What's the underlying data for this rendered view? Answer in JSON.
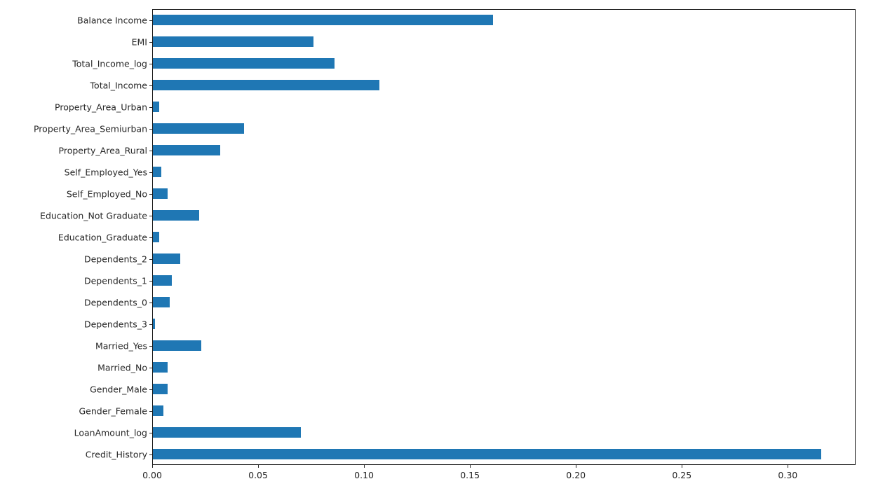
{
  "chart_data": {
    "type": "bar",
    "orientation": "horizontal",
    "title": "",
    "xlabel": "",
    "ylabel": "",
    "grid": false,
    "legend": null,
    "bar_color": "#1f77b4",
    "spine_color": "#1a1a1a",
    "text_color": "#262626",
    "xlim": [
      0,
      0.332
    ],
    "xticks": [
      0.0,
      0.05,
      0.1,
      0.15,
      0.2,
      0.25,
      0.3
    ],
    "xtick_labels": [
      "0.00",
      "0.05",
      "0.10",
      "0.15",
      "0.20",
      "0.25",
      "0.30"
    ],
    "categories": [
      "Balance Income",
      "EMI",
      "Total_Income_log",
      "Total_Income",
      "Property_Area_Urban",
      "Property_Area_Semiurban",
      "Property_Area_Rural",
      "Self_Employed_Yes",
      "Self_Employed_No",
      "Education_Not Graduate",
      "Education_Graduate",
      "Dependents_2",
      "Dependents_1",
      "Dependents_0",
      "Dependents_3",
      "Married_Yes",
      "Married_No",
      "Gender_Male",
      "Gender_Female",
      "LoanAmount_log",
      "Credit_History"
    ],
    "values": [
      0.161,
      0.076,
      0.086,
      0.107,
      0.003,
      0.043,
      0.032,
      0.004,
      0.007,
      0.022,
      0.003,
      0.013,
      0.009,
      0.008,
      0.001,
      0.023,
      0.007,
      0.007,
      0.005,
      0.07,
      0.316
    ]
  }
}
